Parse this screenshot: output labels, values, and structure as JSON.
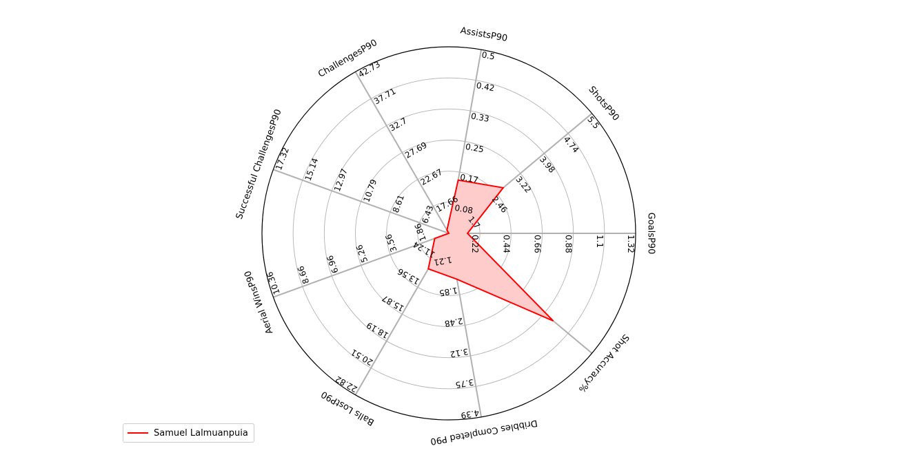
{
  "chart_data": {
    "type": "radar",
    "axes": [
      {
        "label": "GoalsP90",
        "ticks": [
          "0.22",
          "0.44",
          "0.66",
          "0.88",
          "1.1",
          "1.32"
        ]
      },
      {
        "label": "ShotsP90",
        "ticks": [
          "1.7",
          "2.46",
          "3.22",
          "3.98",
          "4.74",
          "5.5"
        ]
      },
      {
        "label": "AssistsP90",
        "ticks": [
          "0.08",
          "0.17",
          "0.25",
          "0.33",
          "0.42",
          "0.5"
        ]
      },
      {
        "label": "ChallengesP90",
        "ticks": [
          "17.66",
          "22.67",
          "27.69",
          "32.7",
          "37.71",
          "42.73"
        ]
      },
      {
        "label": "Successful ChallengesP90",
        "ticks": [
          "6.43",
          "8.61",
          "10.79",
          "12.97",
          "15.14",
          "17.32"
        ]
      },
      {
        "label": "Aerial WinsP90",
        "ticks": [
          "1.86",
          "3.56",
          "5.26",
          "6.96",
          "8.66",
          "10.36"
        ]
      },
      {
        "label": "Balls LostP90",
        "ticks": [
          "11.24",
          "13.56",
          "15.87",
          "18.19",
          "20.51",
          "22.82"
        ]
      },
      {
        "label": "Dribbles Completed P90",
        "ticks": [
          "1.21",
          "1.85",
          "2.48",
          "3.12",
          "3.75",
          "4.39"
        ]
      },
      {
        "label": "Shot Accuracy%",
        "ticks": []
      }
    ],
    "series": [
      {
        "name": "Samuel Lalmuanpuia",
        "color": "#ff0000",
        "fill": "#ffcccc",
        "values_fraction": [
          0.1,
          0.38,
          0.29,
          0.02,
          0.0,
          0.08,
          0.22,
          0.25,
          0.73
        ]
      }
    ],
    "legend_position": "lower-left",
    "grid": true
  }
}
